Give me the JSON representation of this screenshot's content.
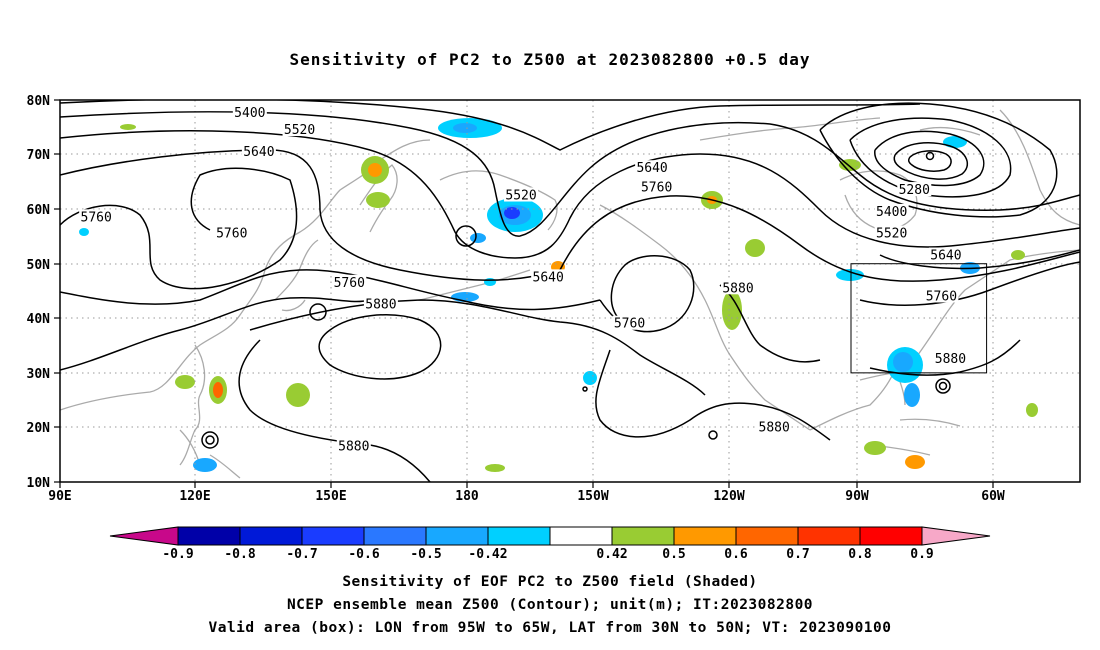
{
  "title": "Sensitivity of PC2 to Z500 at 2023082800 +0.5 day",
  "axes": {
    "lat_labels": [
      "80N",
      "70N",
      "60N",
      "50N",
      "40N",
      "30N",
      "20N",
      "10N"
    ],
    "lon_labels": [
      "90E",
      "120E",
      "150E",
      "180",
      "150W",
      "120W",
      "90W",
      "60W"
    ]
  },
  "contour_labels": [
    {
      "text": "5400",
      "lon": 132,
      "lat": 77.6
    },
    {
      "text": "5520",
      "lon": 143,
      "lat": 74.5
    },
    {
      "text": "5640",
      "lon": 134,
      "lat": 70.5
    },
    {
      "text": "5760",
      "lon": 98,
      "lat": 58.5
    },
    {
      "text": "5760",
      "lon": 128,
      "lat": 55.5
    },
    {
      "text": "5520",
      "lon": 192,
      "lat": 62.5
    },
    {
      "text": "5640",
      "lon": 221,
      "lat": 67.5
    },
    {
      "text": "5760",
      "lon": 222,
      "lat": 64
    },
    {
      "text": "5640",
      "lon": 198,
      "lat": 47.5
    },
    {
      "text": "5760",
      "lon": 154,
      "lat": 46.5
    },
    {
      "text": "5880",
      "lon": 161,
      "lat": 42.5
    },
    {
      "text": "5760",
      "lon": 216,
      "lat": 39
    },
    {
      "text": "5880",
      "lon": 240,
      "lat": 45.5
    },
    {
      "text": "5880",
      "lon": 248,
      "lat": 20
    },
    {
      "text": "5880",
      "lon": 155,
      "lat": 16.5
    },
    {
      "text": "5280",
      "lon": 279,
      "lat": 63.5
    },
    {
      "text": "5400",
      "lon": 274,
      "lat": 59.5
    },
    {
      "text": "5520",
      "lon": 274,
      "lat": 55.5
    },
    {
      "text": "5640",
      "lon": 286,
      "lat": 51.5
    },
    {
      "text": "5760",
      "lon": 285,
      "lat": 44
    },
    {
      "text": "5880",
      "lon": 287,
      "lat": 32.5
    }
  ],
  "valid_box": {
    "lon_min": 265,
    "lon_max": 295,
    "lat_min": 30,
    "lat_max": 50
  },
  "colorbar": {
    "labels": [
      "-0.9",
      "-0.8",
      "-0.7",
      "-0.6",
      "-0.5",
      "-0.42",
      "0.42",
      "0.5",
      "0.6",
      "0.7",
      "0.8",
      "0.9"
    ],
    "left_arrow_color": "#c8088a",
    "right_arrow_color": "#f7a8c8",
    "colors": [
      "#0000a8",
      "#0019d8",
      "#1a3cff",
      "#2a78ff",
      "#18a8ff",
      "#00d0ff",
      "#ffffff",
      "#99cc33",
      "#ff9900",
      "#ff6600",
      "#ff3300",
      "#ff0000"
    ]
  },
  "footer": {
    "line1": "Sensitivity of EOF PC2 to Z500 field (Shaded)",
    "line2": "NCEP ensemble mean Z500 (Contour); unit(m); IT:2023082800",
    "line3": "Valid area (box): LON from 95W to 65W, LAT from 30N to 50N; VT: 2023090100"
  }
}
